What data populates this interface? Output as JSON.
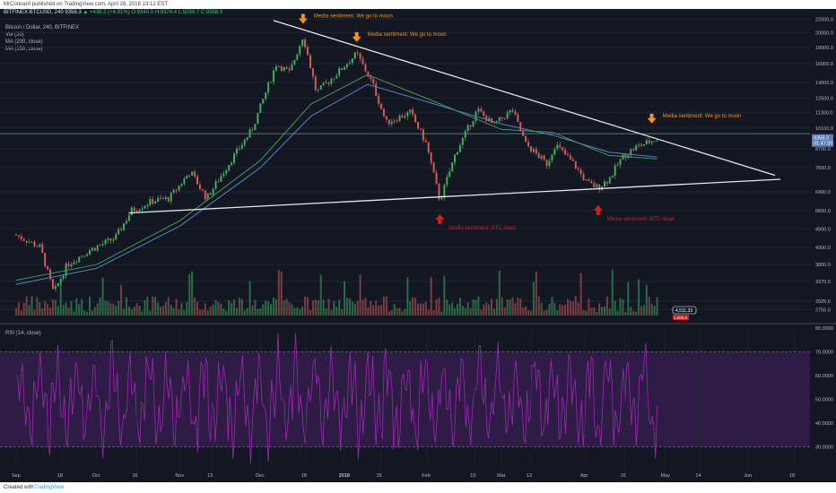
{
  "header": {
    "publish_text": "MrConnard published on TradingView.com, April 28, 2018 13:12 EST",
    "symbol_line_prefix": "BITFINEX:BTCUSD, 240",
    "price_last": "9358.3",
    "price_change": "▲ +438.2 (+4.91%)",
    "ohlc": "O:9340.0 H:9374.4 L:9299.7 C:9358.3"
  },
  "legend": {
    "title": "Bitcoin / Dollar, 240, BITFINEX",
    "vol": "Vol (20)",
    "ma200": "MA (200, close)",
    "ma150": "MA (150, close)",
    "rsi": "RSI (14, close)"
  },
  "footer": {
    "created_with": "Created with",
    "brand": "TradingView"
  },
  "colors": {
    "background": "#131722",
    "candle_up": "#3fae5f",
    "candle_down": "#d35a5a",
    "ma200": "#3a9b5a",
    "ma150": "#5a7fc0",
    "trendline": "#e6e6e6",
    "sentiment_top": "#f7931a",
    "sentiment_bottom": "#d41e1e",
    "rsi_line": "#9c27b0",
    "rsi_band": "#3a1f55"
  },
  "chart_data": {
    "type": "candlestick",
    "scale": "log",
    "ylim": [
      2640,
      22500
    ],
    "y_ticks": [
      "22000.0",
      "20000.0",
      "18000.0",
      "16000.0",
      "14000.0",
      "12500.0",
      "11300.0",
      "10100.0",
      "8700.0",
      "7600.0",
      "6400.0",
      "5600.0",
      "4900.0",
      "4300.0",
      "3800.0",
      "3370.0",
      "2925.0",
      "2755.0"
    ],
    "x_ticks": [
      "Sep",
      "18",
      "Oct",
      "16",
      "Nov",
      "13",
      "Dec",
      "18",
      "2018",
      "15",
      "Feb",
      "19",
      "Mar",
      "12",
      "Apr",
      "16",
      "May",
      "14",
      "Jun",
      "18"
    ],
    "price_path": [
      {
        "date": "2017-09-01",
        "price": 4700
      },
      {
        "date": "2017-09-10",
        "price": 4300
      },
      {
        "date": "2017-09-15",
        "price": 3100
      },
      {
        "date": "2017-09-20",
        "price": 3800
      },
      {
        "date": "2017-09-28",
        "price": 4200
      },
      {
        "date": "2017-10-08",
        "price": 4600
      },
      {
        "date": "2017-10-14",
        "price": 5600
      },
      {
        "date": "2017-10-22",
        "price": 6000
      },
      {
        "date": "2017-10-28",
        "price": 6100
      },
      {
        "date": "2017-11-05",
        "price": 7400
      },
      {
        "date": "2017-11-11",
        "price": 6100
      },
      {
        "date": "2017-11-20",
        "price": 8000
      },
      {
        "date": "2017-11-28",
        "price": 10000
      },
      {
        "date": "2017-12-07",
        "price": 16000
      },
      {
        "date": "2017-12-12",
        "price": 15000
      },
      {
        "date": "2017-12-17",
        "price": 19600
      },
      {
        "date": "2017-12-22",
        "price": 13000
      },
      {
        "date": "2017-12-28",
        "price": 14500
      },
      {
        "date": "2018-01-06",
        "price": 17200
      },
      {
        "date": "2018-01-12",
        "price": 13800
      },
      {
        "date": "2018-01-17",
        "price": 10500
      },
      {
        "date": "2018-01-26",
        "price": 11300
      },
      {
        "date": "2018-02-01",
        "price": 9000
      },
      {
        "date": "2018-02-06",
        "price": 6000
      },
      {
        "date": "2018-02-12",
        "price": 8500
      },
      {
        "date": "2018-02-20",
        "price": 11500
      },
      {
        "date": "2018-02-26",
        "price": 10300
      },
      {
        "date": "2018-03-05",
        "price": 11500
      },
      {
        "date": "2018-03-10",
        "price": 9000
      },
      {
        "date": "2018-03-18",
        "price": 7800
      },
      {
        "date": "2018-03-21",
        "price": 9000
      },
      {
        "date": "2018-03-28",
        "price": 7800
      },
      {
        "date": "2018-04-02",
        "price": 6800
      },
      {
        "date": "2018-04-06",
        "price": 6600
      },
      {
        "date": "2018-04-10",
        "price": 7000
      },
      {
        "date": "2018-04-15",
        "price": 8200
      },
      {
        "date": "2018-04-20",
        "price": 8800
      },
      {
        "date": "2018-04-28",
        "price": 9358
      }
    ],
    "ma200": [
      {
        "date": "2017-09-01",
        "price": 3400
      },
      {
        "date": "2017-10-01",
        "price": 3800
      },
      {
        "date": "2017-11-01",
        "price": 5200
      },
      {
        "date": "2017-12-01",
        "price": 8000
      },
      {
        "date": "2017-12-20",
        "price": 12000
      },
      {
        "date": "2018-01-10",
        "price": 14800
      },
      {
        "date": "2018-02-01",
        "price": 12500
      },
      {
        "date": "2018-03-01",
        "price": 10000
      },
      {
        "date": "2018-03-20",
        "price": 9800
      },
      {
        "date": "2018-04-10",
        "price": 8300
      },
      {
        "date": "2018-04-28",
        "price": 8100
      }
    ],
    "ma150": [
      {
        "date": "2017-09-01",
        "price": 3300
      },
      {
        "date": "2017-10-01",
        "price": 3700
      },
      {
        "date": "2017-11-01",
        "price": 5000
      },
      {
        "date": "2017-12-01",
        "price": 7600
      },
      {
        "date": "2017-12-20",
        "price": 11000
      },
      {
        "date": "2018-01-10",
        "price": 13800
      },
      {
        "date": "2018-02-01",
        "price": 12200
      },
      {
        "date": "2018-03-01",
        "price": 10400
      },
      {
        "date": "2018-03-20",
        "price": 9600
      },
      {
        "date": "2018-04-10",
        "price": 8500
      },
      {
        "date": "2018-04-28",
        "price": 8200
      }
    ],
    "trendlines": [
      {
        "name": "upper",
        "from": {
          "date": "2017-12-06",
          "price": 21800
        },
        "to": {
          "date": "2018-06-11",
          "price": 7200
        }
      },
      {
        "name": "lower",
        "from": {
          "date": "2017-10-13",
          "price": 5500
        },
        "to": {
          "date": "2018-06-13",
          "price": 7000
        }
      }
    ],
    "annotations": [
      {
        "text": "Media sentiment: We go to moon",
        "kind": "top",
        "date": "2017-12-17",
        "price": 19600
      },
      {
        "text": "Media sentiment: We go to moon",
        "kind": "top",
        "date": "2018-01-06",
        "price": 17200
      },
      {
        "text": "Media sentiment: We go to moon",
        "kind": "top",
        "date": "2018-04-26",
        "price": 9600
      },
      {
        "text": "Media sentiment: BTC dead",
        "kind": "bottom",
        "date": "2018-02-06",
        "price": 6000
      },
      {
        "text": "Media sentiment: BTC dead",
        "kind": "bottom",
        "date": "2018-04-06",
        "price": 6400
      }
    ],
    "horizontal_level": 9700,
    "price_labels": [
      "9358.3",
      "01:47:30"
    ],
    "volume_label": "4,511.33",
    "volume_label2": "1,000.0",
    "rsi": {
      "ylim": [
        20,
        80
      ],
      "ticks": [
        "80.0000",
        "70.0000",
        "60.0000",
        "50.0000",
        "40.0000",
        "30.0000"
      ],
      "band": [
        30,
        70
      ]
    }
  }
}
